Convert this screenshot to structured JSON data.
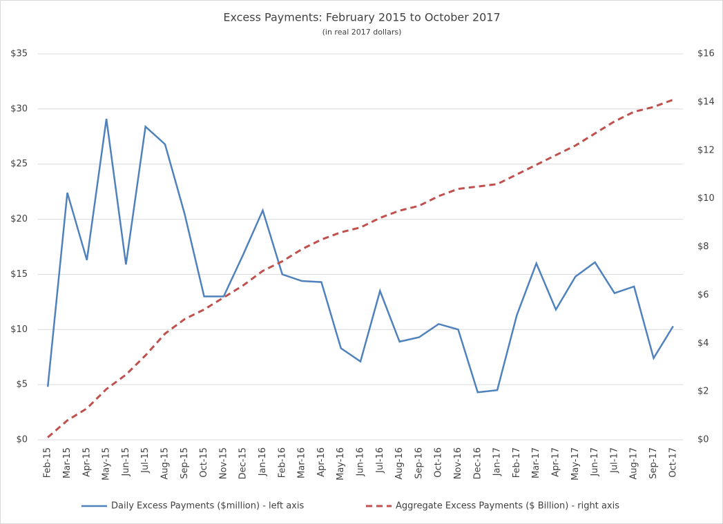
{
  "chart_data": {
    "type": "line",
    "title": "Excess Payments: February 2015 to October 2017",
    "subtitle": "(in real 2017 dollars)",
    "categories": [
      "Feb-15",
      "Mar-15",
      "Apr-15",
      "May-15",
      "Jun-15",
      "Jul-15",
      "Aug-15",
      "Sep-15",
      "Oct-15",
      "Nov-15",
      "Dec-15",
      "Jan-16",
      "Feb-16",
      "Mar-16",
      "Apr-16",
      "May-16",
      "Jun-16",
      "Jul-16",
      "Aug-16",
      "Sep-16",
      "Oct-16",
      "Nov-16",
      "Dec-16",
      "Jan-17",
      "Feb-17",
      "Mar-17",
      "Apr-17",
      "May-17",
      "Jun-17",
      "Jul-17",
      "Aug-17",
      "Sep-17",
      "Oct-17"
    ],
    "series": [
      {
        "name": "Daily Excess Payments ($million) - left axis",
        "color": "#4f81bd",
        "dash": false,
        "values": [
          4.8,
          22.4,
          16.3,
          29.1,
          15.9,
          28.4,
          26.8,
          20.5,
          13.0,
          13.0,
          16.8,
          20.8,
          15.0,
          14.4,
          14.3,
          8.3,
          7.1,
          13.5,
          8.9,
          9.3,
          10.5,
          10.0,
          4.3,
          4.5,
          11.3,
          16.0,
          11.8,
          14.8,
          16.1,
          13.3,
          13.9,
          7.4,
          10.3
        ]
      },
      {
        "name": "Aggregate Excess Payments ($ Billion) - right axis",
        "color": "#c0504d",
        "dash": true,
        "axis": "y2",
        "values": [
          0.1,
          0.8,
          1.3,
          2.1,
          2.7,
          3.5,
          4.4,
          5.0,
          5.4,
          5.9,
          6.4,
          7.0,
          7.4,
          7.9,
          8.3,
          8.6,
          8.8,
          9.2,
          9.5,
          9.7,
          10.1,
          10.4,
          10.5,
          10.6,
          11.0,
          11.4,
          11.8,
          12.2,
          12.7,
          13.2,
          13.6,
          13.8,
          14.1
        ]
      }
    ],
    "ylim": [
      0,
      35
    ],
    "yticks": [
      {
        "value": 0,
        "label": "$0"
      },
      {
        "value": 5,
        "label": "$5"
      },
      {
        "value": 10,
        "label": "$10"
      },
      {
        "value": 15,
        "label": "$15"
      },
      {
        "value": 20,
        "label": "$20"
      },
      {
        "value": 25,
        "label": "$25"
      },
      {
        "value": 30,
        "label": "$30"
      },
      {
        "value": 35,
        "label": "$35"
      }
    ],
    "y2lim": [
      0,
      16
    ],
    "y2ticks": [
      {
        "value": 0,
        "label": "$0"
      },
      {
        "value": 2,
        "label": "$2"
      },
      {
        "value": 4,
        "label": "$4"
      },
      {
        "value": 6,
        "label": "$6"
      },
      {
        "value": 8,
        "label": "$8"
      },
      {
        "value": 10,
        "label": "$10"
      },
      {
        "value": 12,
        "label": "$12"
      },
      {
        "value": 14,
        "label": "$14"
      },
      {
        "value": 16,
        "label": "$16"
      }
    ],
    "grid": true,
    "legend": "bottom"
  }
}
